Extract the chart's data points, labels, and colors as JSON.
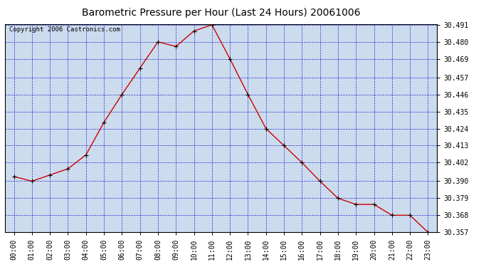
{
  "title": "Barometric Pressure per Hour (Last 24 Hours) 20061006",
  "copyright": "Copyright 2006 Castronics.com",
  "hours": [
    "00:00",
    "01:00",
    "02:00",
    "03:00",
    "04:00",
    "05:00",
    "06:00",
    "07:00",
    "08:00",
    "09:00",
    "10:00",
    "11:00",
    "12:00",
    "13:00",
    "14:00",
    "15:00",
    "16:00",
    "17:00",
    "18:00",
    "19:00",
    "20:00",
    "21:00",
    "22:00",
    "23:00"
  ],
  "values": [
    30.393,
    30.39,
    30.394,
    30.398,
    30.407,
    30.428,
    30.446,
    30.463,
    30.48,
    30.477,
    30.487,
    30.491,
    30.469,
    30.446,
    30.424,
    30.413,
    30.402,
    30.39,
    30.379,
    30.375,
    30.375,
    30.368,
    30.368,
    30.357
  ],
  "ylim_min": 30.357,
  "ylim_max": 30.491,
  "yticks": [
    30.491,
    30.48,
    30.469,
    30.457,
    30.446,
    30.435,
    30.424,
    30.413,
    30.402,
    30.39,
    30.379,
    30.368,
    30.357
  ],
  "line_color": "#cc0000",
  "marker_color": "#000000",
  "bg_color": "#ccdcee",
  "grid_color": "#0000cc",
  "title_color": "#000000",
  "title_fontsize": 10,
  "copyright_fontsize": 6.5,
  "tick_fontsize": 7,
  "border_color": "#000000"
}
